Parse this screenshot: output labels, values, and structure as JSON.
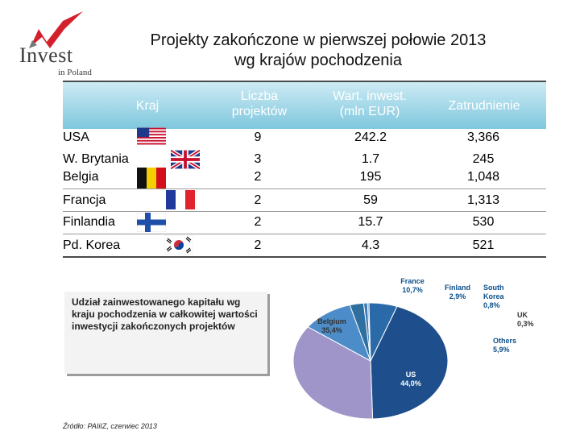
{
  "logo": {
    "word": "Invest",
    "sub": "in Poland"
  },
  "title": {
    "line1": "Projekty zakończone w pierwszej połowie 2013",
    "line2": "wg krajów pochodzenia"
  },
  "table": {
    "headers": {
      "kraj": "Kraj",
      "liczba_1": "Liczba",
      "liczba_2": "projektów",
      "wart_1": "Wart. inwest.",
      "wart_2": "(mln EUR)",
      "zatrudnienie": "Zatrudnienie"
    },
    "rows": [
      {
        "country": "USA",
        "projects": "9",
        "value": "242.2",
        "employment": "3,366",
        "flag": "us-flag-icon"
      },
      {
        "country": "W. Brytania",
        "projects": "3",
        "value": "1.7",
        "employment": "245",
        "flag": "uk-flag-icon"
      },
      {
        "country": "Belgia",
        "projects": "2",
        "value": "195",
        "employment": "1,048",
        "flag": "belgium-flag-icon"
      },
      {
        "country": "Francja",
        "projects": "2",
        "value": "59",
        "employment": "1,313",
        "flag": "france-flag-icon"
      },
      {
        "country": "Finlandia",
        "projects": "2",
        "value": "15.7",
        "employment": "530",
        "flag": "finland-flag-icon"
      },
      {
        "country": "Pd. Korea",
        "projects": "2",
        "value": "4.3",
        "employment": "521",
        "flag": "korea-flag-icon"
      }
    ]
  },
  "note": "Udział zainwestowanego kapitału wg kraju pochodzenia w całkowitej wartości inwestycji zakończonych projektów",
  "source": "Źródło: PAIiIZ, czerwiec 2013",
  "colors": {
    "header_gradient_top": "#cdebf4",
    "header_gradient_bottom": "#7fc7dd",
    "logo_red": "#d4202c"
  },
  "chart_data": {
    "type": "pie",
    "slices": [
      {
        "label": "US",
        "value_label": "44,0%",
        "value": 44.0,
        "color": "#1e4f8c"
      },
      {
        "label": "Belgium",
        "value_label": "35,4%",
        "value": 35.4,
        "color": "#9f95c9"
      },
      {
        "label": "France",
        "value_label": "10,7%",
        "value": 10.7,
        "color": "#4c8cc8"
      },
      {
        "label": "Finland",
        "value_label": "2,9%",
        "value": 2.9,
        "color": "#2f6fa0"
      },
      {
        "label": "South Korea",
        "value_label": "0,8%",
        "value": 0.8,
        "color": "#3d7cb5"
      },
      {
        "label": "UK",
        "value_label": "0,3%",
        "value": 0.3,
        "color": "#5a8fc2"
      },
      {
        "label": "Others",
        "value_label": "5,9%",
        "value": 5.9,
        "color": "#2a6aa8"
      }
    ]
  }
}
